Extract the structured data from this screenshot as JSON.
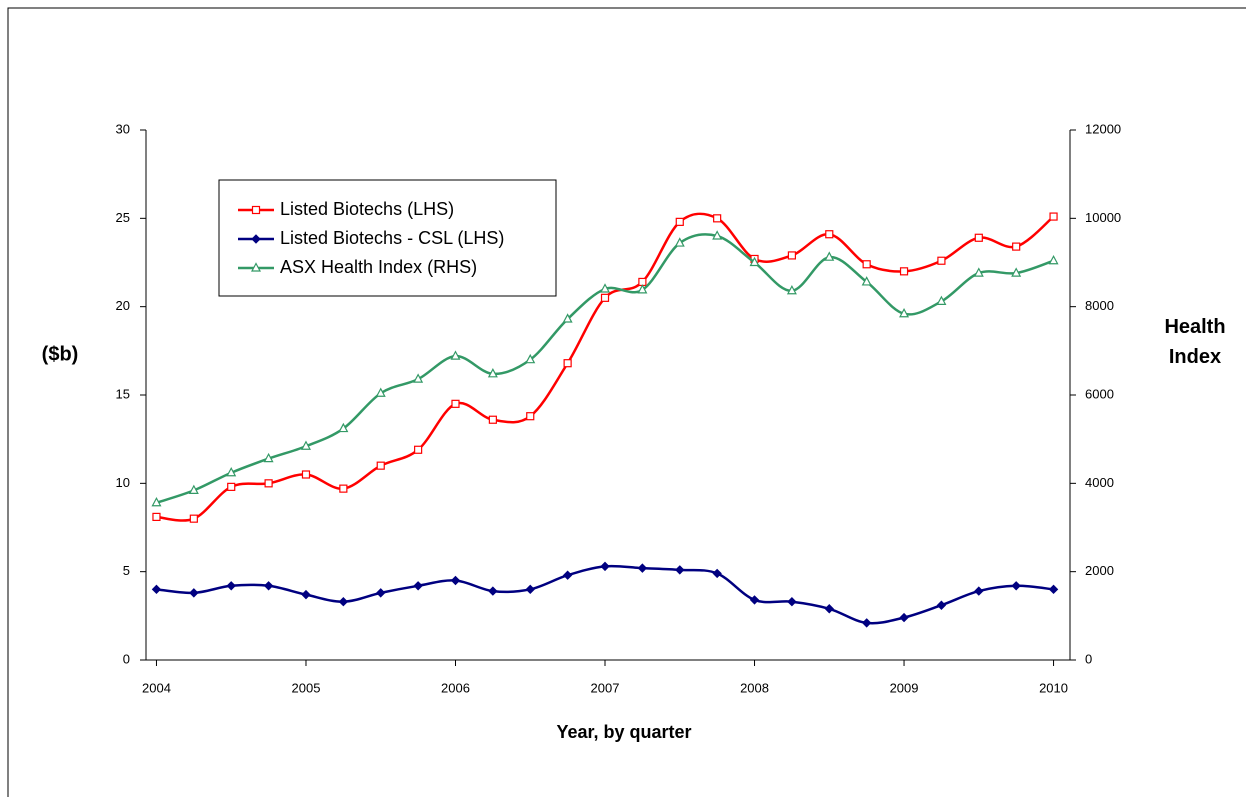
{
  "chart_data": {
    "type": "line",
    "xlabel": "Year, by quarter",
    "ylabel": "($b)",
    "y2label": "Health Index",
    "x": [
      2004,
      2004.25,
      2004.5,
      2004.75,
      2005,
      2005.25,
      2005.5,
      2005.75,
      2006,
      2006.25,
      2006.5,
      2006.75,
      2007,
      2007.25,
      2007.5,
      2007.75,
      2008,
      2008.25,
      2008.5,
      2008.75,
      2009,
      2009.25,
      2009.5,
      2009.75,
      2010
    ],
    "xlim": [
      2003.93,
      2010.11
    ],
    "xticks": [
      2004,
      2005,
      2006,
      2007,
      2008,
      2009,
      2010
    ],
    "ylim": [
      0,
      30
    ],
    "yticks": [
      0,
      5,
      10,
      15,
      20,
      25,
      30
    ],
    "y2lim": [
      0,
      12000
    ],
    "y2ticks": [
      0,
      2000,
      4000,
      6000,
      8000,
      10000,
      12000
    ],
    "legend": "upper left",
    "series": [
      {
        "name": "Listed Biotechs (LHS)",
        "color": "#ff0000",
        "marker": "square",
        "values": [
          8.1,
          8.0,
          9.8,
          10.0,
          10.5,
          9.7,
          11.0,
          11.9,
          14.5,
          13.6,
          13.8,
          16.8,
          20.5,
          21.4,
          24.8,
          25.0,
          22.7,
          22.9,
          24.1,
          22.4,
          22.0,
          22.6,
          23.9,
          23.4,
          25.1
        ]
      },
      {
        "name": "Listed Biotechs - CSL (LHS)",
        "color": "#000080",
        "marker": "diamond",
        "values": [
          4.0,
          3.8,
          4.2,
          4.2,
          3.7,
          3.3,
          3.8,
          4.2,
          4.5,
          3.9,
          4.0,
          4.8,
          5.3,
          5.2,
          5.1,
          4.9,
          3.4,
          3.3,
          2.9,
          2.1,
          2.4,
          3.1,
          3.9,
          4.2,
          4.0
        ]
      },
      {
        "name": "ASX Health Index (RHS)",
        "color": "#339966",
        "marker": "triangle",
        "axis": "y2",
        "values": [
          3560,
          3840,
          4240,
          4560,
          4840,
          5240,
          6040,
          6360,
          6880,
          6480,
          6800,
          7720,
          8400,
          8380,
          9440,
          9600,
          9000,
          8360,
          9120,
          8560,
          7840,
          8120,
          8760,
          8760,
          9040
        ]
      }
    ]
  }
}
